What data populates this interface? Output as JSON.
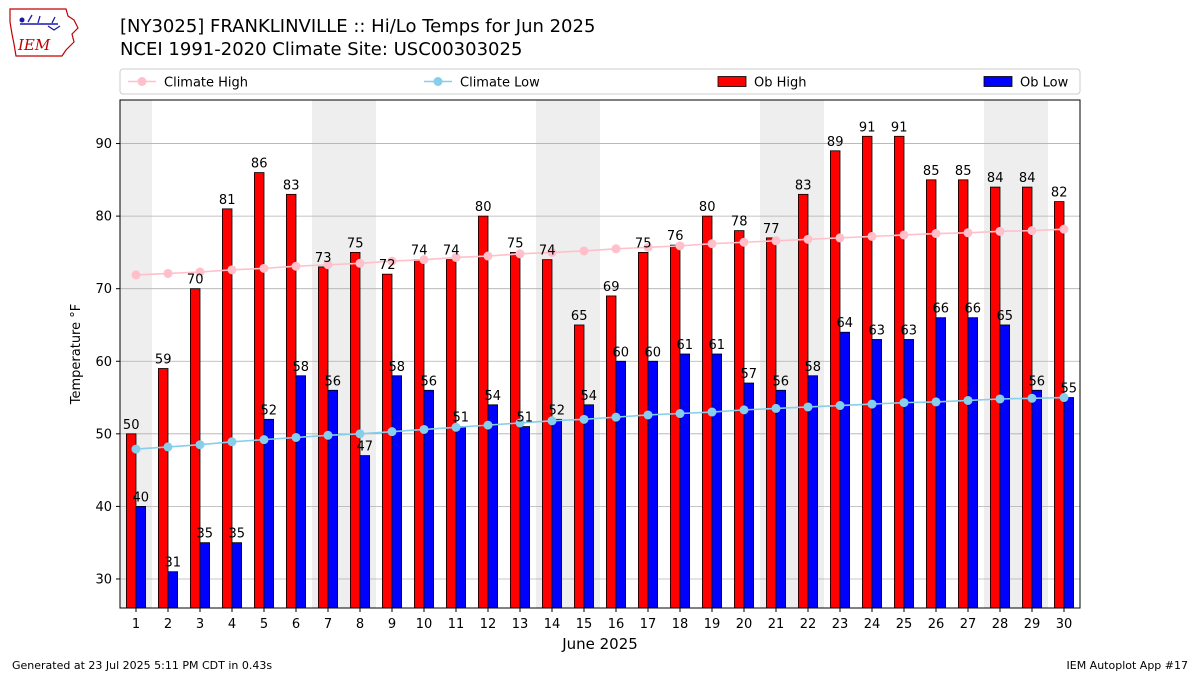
{
  "header": {
    "title": "[NY3025] FRANKLINVILLE :: Hi/Lo Temps for Jun 2025",
    "subtitle": "NCEI 1991-2020 Climate Site: USC00303025",
    "logo_text": "IEM"
  },
  "footer": {
    "generated": "Generated at 23 Jul 2025 5:11 PM CDT in 0.43s",
    "app": "IEM Autoplot App #17"
  },
  "colors": {
    "ob_high": "#ff0000",
    "ob_low": "#0000ff",
    "climate_high": "#ffc0cb",
    "climate_low": "#87ceeb",
    "weekend_band": "#eeeeee",
    "grid": "#b0b0b0"
  },
  "chart_data": {
    "type": "bar",
    "xlabel": "June 2025",
    "ylabel": "Temperature °F",
    "ylim": [
      26,
      96
    ],
    "yticks": [
      30,
      40,
      50,
      60,
      70,
      80,
      90
    ],
    "grid": "horizontal",
    "legend_placement": "top, across",
    "categories": [
      "1",
      "2",
      "3",
      "4",
      "5",
      "6",
      "7",
      "8",
      "9",
      "10",
      "11",
      "12",
      "13",
      "14",
      "15",
      "16",
      "17",
      "18",
      "19",
      "20",
      "21",
      "22",
      "23",
      "24",
      "25",
      "26",
      "27",
      "28",
      "29",
      "30"
    ],
    "weekend_days": [
      1,
      7,
      8,
      14,
      15,
      21,
      22,
      28,
      29
    ],
    "series": [
      {
        "name": "Ob High",
        "kind": "bar",
        "values": [
          50,
          59,
          70,
          81,
          86,
          83,
          73,
          75,
          72,
          74,
          74,
          80,
          75,
          74,
          65,
          69,
          75,
          76,
          80,
          78,
          77,
          83,
          89,
          91,
          91,
          85,
          85,
          84,
          84,
          82
        ]
      },
      {
        "name": "Ob Low",
        "kind": "bar",
        "values": [
          40,
          31,
          35,
          35,
          52,
          58,
          56,
          47,
          58,
          56,
          51,
          54,
          51,
          52,
          54,
          60,
          60,
          61,
          61,
          57,
          56,
          58,
          64,
          63,
          63,
          66,
          66,
          65,
          56,
          55
        ]
      },
      {
        "name": "Climate High",
        "kind": "line",
        "values": [
          71.9,
          72.1,
          72.3,
          72.6,
          72.8,
          73.1,
          73.3,
          73.5,
          73.8,
          74.0,
          74.3,
          74.5,
          74.8,
          75.0,
          75.2,
          75.5,
          75.7,
          75.9,
          76.2,
          76.4,
          76.6,
          76.8,
          77.0,
          77.2,
          77.4,
          77.6,
          77.7,
          77.9,
          78.0,
          78.2
        ]
      },
      {
        "name": "Climate Low",
        "kind": "line",
        "values": [
          47.9,
          48.2,
          48.5,
          48.9,
          49.2,
          49.5,
          49.8,
          50.0,
          50.3,
          50.6,
          50.9,
          51.2,
          51.5,
          51.8,
          52.0,
          52.3,
          52.6,
          52.8,
          53.0,
          53.3,
          53.5,
          53.7,
          53.9,
          54.1,
          54.3,
          54.4,
          54.6,
          54.8,
          54.9,
          55.0
        ]
      }
    ]
  }
}
